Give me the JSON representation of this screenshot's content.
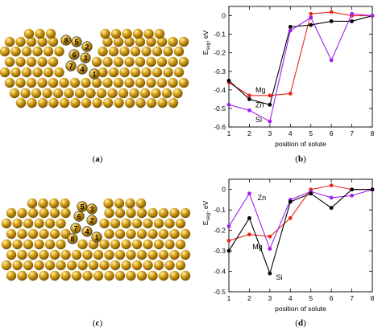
{
  "panels": [
    {
      "id": "a",
      "caption_open": "(",
      "caption_letter": "a",
      "caption_close": ")"
    },
    {
      "id": "b",
      "caption_open": "(",
      "caption_letter": "b",
      "caption_close": ")"
    },
    {
      "id": "c",
      "caption_open": "(",
      "caption_letter": "c",
      "caption_close": ")"
    },
    {
      "id": "d",
      "caption_open": "(",
      "caption_letter": "d",
      "caption_close": ")"
    }
  ],
  "structure_a": {
    "site_labels": [
      "8",
      "5",
      "2",
      "6",
      "3",
      "7",
      "4",
      "1"
    ],
    "atom_color": "#d9a21a"
  },
  "structure_c": {
    "site_labels": [
      "5",
      "3",
      "6",
      "2",
      "7",
      "4",
      "8",
      "1"
    ],
    "atom_color": "#d9a21a"
  },
  "chart_data": [
    {
      "type": "line",
      "panel": "b",
      "xlabel": "position of solute",
      "ylabel": "E_seg, eV",
      "ylabel_main": "E",
      "ylabel_sub": "seg",
      "ylabel_tail": ", eV",
      "x": [
        1,
        2,
        3,
        4,
        5,
        6,
        7,
        8
      ],
      "xlim": [
        1,
        8
      ],
      "ylim": [
        -0.6,
        0.05
      ],
      "yticks": [
        0,
        -0.1,
        -0.2,
        -0.3,
        -0.4,
        -0.5,
        -0.6
      ],
      "ytick_labels": [
        "0",
        "-0.1",
        "-0.2",
        "-0.3",
        "-0.4",
        "-0.5",
        "-0.6"
      ],
      "xtick_labels": [
        "1",
        "2",
        "3",
        "4",
        "5",
        "6",
        "7",
        "8"
      ],
      "series": [
        {
          "name": "Mg",
          "color": "#e8281c",
          "values": [
            -0.36,
            -0.43,
            -0.43,
            -0.42,
            0.01,
            0.02,
            0.0,
            0.0
          ]
        },
        {
          "name": "Zn",
          "color": "#000000",
          "values": [
            -0.35,
            -0.45,
            -0.48,
            -0.06,
            -0.05,
            -0.03,
            -0.03,
            0.0
          ]
        },
        {
          "name": "Si",
          "color": "#a020f0",
          "values": [
            -0.48,
            -0.51,
            -0.57,
            -0.08,
            -0.01,
            -0.24,
            0.01,
            0.0
          ]
        }
      ],
      "annotations": [
        {
          "text": "Mg",
          "x": 2.3,
          "y": -0.4
        },
        {
          "text": "Zn",
          "x": 2.3,
          "y": -0.48
        },
        {
          "text": "Si",
          "x": 2.3,
          "y": -0.56
        }
      ]
    },
    {
      "type": "line",
      "panel": "d",
      "xlabel": "position of solute",
      "ylabel": "E_seg, eV",
      "ylabel_main": "E",
      "ylabel_sub": "seg",
      "ylabel_tail": ", eV",
      "x": [
        1,
        2,
        3,
        4,
        5,
        6,
        7,
        8
      ],
      "xlim": [
        1,
        8
      ],
      "ylim": [
        -0.5,
        0.05
      ],
      "yticks": [
        0,
        -0.1,
        -0.2,
        -0.3,
        -0.4,
        -0.5
      ],
      "ytick_labels": [
        "0",
        "-0.1",
        "-0.2",
        "-0.3",
        "-0.4",
        "-0.5"
      ],
      "xtick_labels": [
        "1",
        "2",
        "3",
        "4",
        "5",
        "6",
        "7",
        "8"
      ],
      "series": [
        {
          "name": "Mg",
          "color": "#e8281c",
          "values": [
            -0.25,
            -0.22,
            -0.23,
            -0.14,
            0.0,
            0.02,
            0.0,
            0.0
          ]
        },
        {
          "name": "Zn",
          "color": "#a020f0",
          "values": [
            -0.18,
            -0.02,
            -0.29,
            -0.05,
            -0.01,
            -0.04,
            -0.03,
            0.0
          ]
        },
        {
          "name": "Si",
          "color": "#000000",
          "values": [
            -0.3,
            -0.14,
            -0.41,
            -0.06,
            -0.02,
            -0.09,
            0.0,
            0.0
          ]
        }
      ],
      "annotations": [
        {
          "text": "Zn",
          "x": 2.4,
          "y": -0.04
        },
        {
          "text": "Mg",
          "x": 2.15,
          "y": -0.28
        },
        {
          "text": "Si",
          "x": 3.3,
          "y": -0.43
        }
      ]
    }
  ]
}
